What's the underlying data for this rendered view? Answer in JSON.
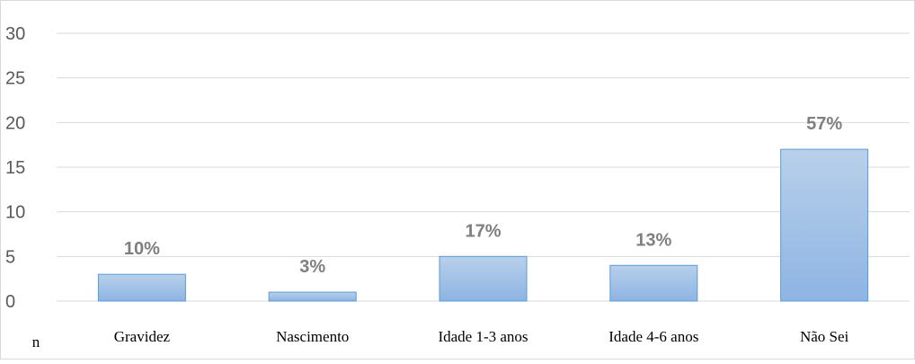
{
  "chart_data": {
    "type": "bar",
    "categories": [
      "Gravidez",
      "Nascimento",
      "Idade 1-3 anos",
      "Idade 4-6 anos",
      "Não Sei"
    ],
    "values": [
      3,
      1,
      5,
      4,
      17
    ],
    "data_labels": [
      "10%",
      "3%",
      "17%",
      "13%",
      "57%"
    ],
    "ylim": [
      0,
      30
    ],
    "yticks": [
      0,
      5,
      10,
      15,
      20,
      25,
      30
    ],
    "grid": true,
    "corner_label": "n",
    "bar_color_top": "#b8d0ea",
    "bar_color_bottom": "#8eb4e3",
    "bar_stroke": "#5b9bd5"
  }
}
